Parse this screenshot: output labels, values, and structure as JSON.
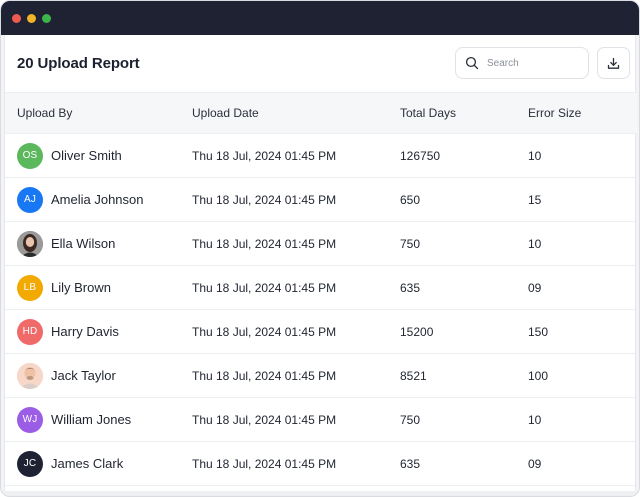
{
  "window": {
    "controls": [
      {
        "name": "close",
        "color": "#ee5a52"
      },
      {
        "name": "minimize",
        "color": "#f0b429"
      },
      {
        "name": "maximize",
        "color": "#3bb54a"
      }
    ]
  },
  "header": {
    "title": "20 Upload Report",
    "search_placeholder": "Search",
    "search_icon": "search-icon",
    "download_icon": "download-icon"
  },
  "table": {
    "columns": {
      "upload_by": "Upload By",
      "upload_date": "Upload Date",
      "total_days": "Total Days",
      "error_size": "Error Size"
    },
    "rows": [
      {
        "name": "Oliver Smith",
        "initials": "OS",
        "avatar_type": "initials",
        "avatar_color": "#5cb85c",
        "date": "Thu 18 Jul, 2024 01:45 PM",
        "days": "126750",
        "error": "10"
      },
      {
        "name": "Amelia Johnson",
        "initials": "AJ",
        "avatar_type": "initials",
        "avatar_color": "#1877f2",
        "date": "Thu 18 Jul, 2024 01:45 PM",
        "days": "650",
        "error": "15"
      },
      {
        "name": "Ella Wilson",
        "initials": "",
        "avatar_type": "photo",
        "avatar_color": "#8a8a8a",
        "date": "Thu 18 Jul, 2024 01:45 PM",
        "days": "750",
        "error": "10"
      },
      {
        "name": "Lily Brown",
        "initials": "LB",
        "avatar_type": "initials",
        "avatar_color": "#f2a900",
        "date": "Thu 18 Jul, 2024 01:45 PM",
        "days": "635",
        "error": "09"
      },
      {
        "name": "Harry Davis",
        "initials": "HD",
        "avatar_type": "initials",
        "avatar_color": "#f06a6a",
        "date": "Thu 18 Jul, 2024 01:45 PM",
        "days": "15200",
        "error": "150"
      },
      {
        "name": "Jack Taylor",
        "initials": "",
        "avatar_type": "photo",
        "avatar_color": "#f2c9b8",
        "date": "Thu 18 Jul, 2024 01:45 PM",
        "days": "8521",
        "error": "100"
      },
      {
        "name": "William Jones",
        "initials": "WJ",
        "avatar_type": "initials",
        "avatar_color": "#9b5de5",
        "date": "Thu 18 Jul, 2024 01:45 PM",
        "days": "750",
        "error": "10"
      },
      {
        "name": "James Clark",
        "initials": "JC",
        "avatar_type": "initials",
        "avatar_color": "#1e2233",
        "date": "Thu 18 Jul, 2024 01:45 PM",
        "days": "635",
        "error": "09"
      }
    ]
  }
}
